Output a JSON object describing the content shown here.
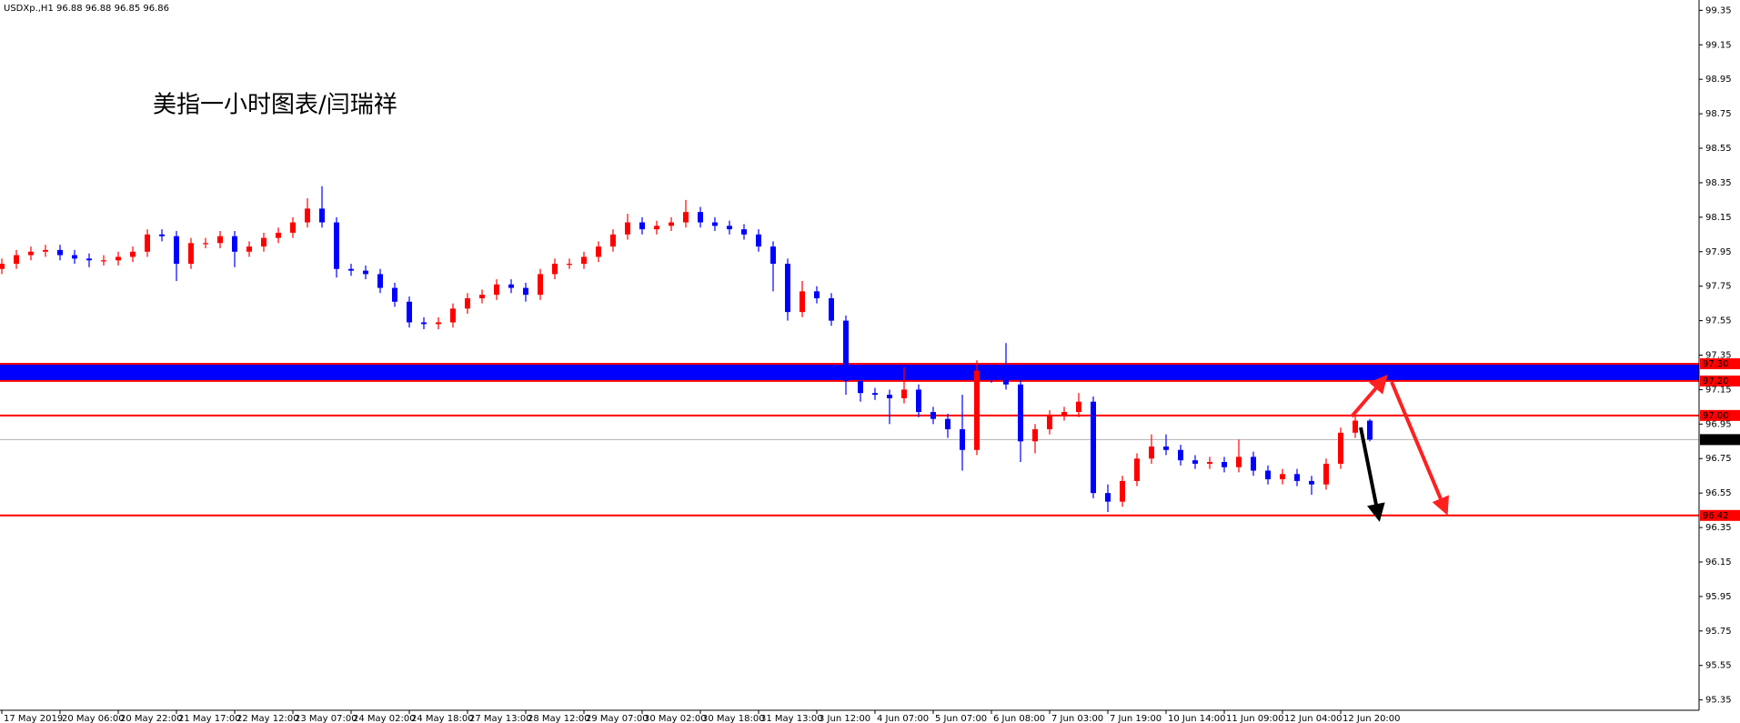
{
  "chart_data": {
    "type": "candlestick",
    "title": "USDXp.,H1 96.88 96.88 96.85 96.86",
    "annotation": "美指一小时图表/闫瑞祥",
    "up_color": "#ff0000",
    "down_color": "#0000ff",
    "ylim": [
      99.41,
      95.29
    ],
    "yticks": [
      99.35,
      99.15,
      98.95,
      98.75,
      98.55,
      98.35,
      98.15,
      97.95,
      97.75,
      97.55,
      97.35,
      97.15,
      96.95,
      96.75,
      96.55,
      96.35,
      96.15,
      95.95,
      95.75,
      95.55,
      95.35
    ],
    "xlim": [
      0,
      116.5
    ],
    "xticks": [
      {
        "value": 0,
        "label": "17 May 2019"
      },
      {
        "value": 4,
        "label": "20 May 06:00"
      },
      {
        "value": 8,
        "label": "20 May 22:00"
      },
      {
        "value": 12,
        "label": "21 May 17:00"
      },
      {
        "value": 16,
        "label": "22 May 12:00"
      },
      {
        "value": 20,
        "label": "23 May 07:00"
      },
      {
        "value": 24,
        "label": "24 May 02:00"
      },
      {
        "value": 28,
        "label": "24 May 18:00"
      },
      {
        "value": 32,
        "label": "27 May 13:00"
      },
      {
        "value": 36,
        "label": "28 May 12:00"
      },
      {
        "value": 40,
        "label": "29 May 07:00"
      },
      {
        "value": 44,
        "label": "30 May 02:00"
      },
      {
        "value": 48,
        "label": "30 May 18:00"
      },
      {
        "value": 52,
        "label": "31 May 13:00"
      },
      {
        "value": 56,
        "label": "3 Jun 12:00"
      },
      {
        "value": 60,
        "label": "4 Jun 07:00"
      },
      {
        "value": 64,
        "label": "5 Jun 07:00"
      },
      {
        "value": 68,
        "label": "6 Jun 08:00"
      },
      {
        "value": 72,
        "label": "7 Jun 03:00"
      },
      {
        "value": 76,
        "label": "7 Jun 19:00"
      },
      {
        "value": 80,
        "label": "10 Jun 14:00"
      },
      {
        "value": 84,
        "label": "11 Jun 09:00"
      },
      {
        "value": 88,
        "label": "12 Jun 04:00"
      },
      {
        "value": 92,
        "label": "12 Jun 20:00"
      }
    ],
    "zone": [
      97.2,
      97.3
    ],
    "zone_color": "#0000ff",
    "level_color": "#ff0000",
    "levels": [
      {
        "value": 97.3,
        "label": "97.30"
      },
      {
        "value": 97.2,
        "label": "97.20"
      },
      {
        "value": 97.0,
        "label": "97.00"
      },
      96.42
    ],
    "last_price": 96.86,
    "ohlc": [
      [
        97.85,
        97.91,
        97.82,
        97.88
      ],
      [
        97.88,
        97.96,
        97.85,
        97.93
      ],
      [
        97.93,
        97.98,
        97.9,
        97.95
      ],
      [
        97.95,
        97.99,
        97.92,
        97.96
      ],
      [
        97.96,
        97.99,
        97.9,
        97.93
      ],
      [
        97.93,
        97.96,
        97.88,
        97.91
      ],
      [
        97.91,
        97.94,
        97.86,
        97.9
      ],
      [
        97.9,
        97.93,
        97.87,
        97.9
      ],
      [
        97.9,
        97.95,
        97.87,
        97.92
      ],
      [
        97.92,
        97.98,
        97.89,
        97.95
      ],
      [
        97.95,
        98.08,
        97.92,
        98.05
      ],
      [
        98.05,
        98.08,
        98.01,
        98.04
      ],
      [
        98.04,
        98.07,
        97.78,
        97.88
      ],
      [
        97.88,
        98.03,
        97.85,
        98.0
      ],
      [
        98.0,
        98.03,
        97.97,
        98.0
      ],
      [
        98.0,
        98.07,
        97.97,
        98.04
      ],
      [
        98.04,
        98.07,
        97.86,
        97.95
      ],
      [
        97.95,
        98.01,
        97.92,
        97.98
      ],
      [
        97.98,
        98.06,
        97.95,
        98.03
      ],
      [
        98.03,
        98.09,
        98.0,
        98.06
      ],
      [
        98.06,
        98.15,
        98.03,
        98.12
      ],
      [
        98.12,
        98.26,
        98.09,
        98.2
      ],
      [
        98.2,
        98.33,
        98.09,
        98.12
      ],
      [
        98.12,
        98.15,
        97.8,
        97.85
      ],
      [
        97.85,
        97.88,
        97.81,
        97.84
      ],
      [
        97.84,
        97.87,
        97.79,
        97.82
      ],
      [
        97.82,
        97.85,
        97.71,
        97.74
      ],
      [
        97.74,
        97.77,
        97.63,
        97.66
      ],
      [
        97.66,
        97.69,
        97.51,
        97.54
      ],
      [
        97.54,
        97.57,
        97.5,
        97.53
      ],
      [
        97.53,
        97.57,
        97.5,
        97.54
      ],
      [
        97.54,
        97.65,
        97.51,
        97.62
      ],
      [
        97.62,
        97.71,
        97.59,
        97.68
      ],
      [
        97.68,
        97.73,
        97.65,
        97.7
      ],
      [
        97.7,
        97.79,
        97.67,
        97.76
      ],
      [
        97.76,
        97.79,
        97.71,
        97.74
      ],
      [
        97.74,
        97.77,
        97.66,
        97.7
      ],
      [
        97.7,
        97.85,
        97.67,
        97.82
      ],
      [
        97.82,
        97.91,
        97.79,
        97.88
      ],
      [
        97.88,
        97.91,
        97.85,
        97.88
      ],
      [
        97.88,
        97.95,
        97.85,
        97.92
      ],
      [
        97.92,
        98.01,
        97.89,
        97.98
      ],
      [
        97.98,
        98.08,
        97.95,
        98.05
      ],
      [
        98.05,
        98.17,
        98.02,
        98.12
      ],
      [
        98.12,
        98.15,
        98.05,
        98.08
      ],
      [
        98.08,
        98.13,
        98.05,
        98.1
      ],
      [
        98.1,
        98.15,
        98.07,
        98.12
      ],
      [
        98.12,
        98.25,
        98.09,
        98.18
      ],
      [
        98.18,
        98.21,
        98.09,
        98.12
      ],
      [
        98.12,
        98.15,
        98.07,
        98.1
      ],
      [
        98.1,
        98.13,
        98.05,
        98.08
      ],
      [
        98.08,
        98.11,
        98.02,
        98.05
      ],
      [
        98.05,
        98.08,
        97.95,
        97.98
      ],
      [
        97.98,
        98.01,
        97.72,
        97.88
      ],
      [
        97.88,
        97.91,
        97.55,
        97.6
      ],
      [
        97.6,
        97.78,
        97.57,
        97.72
      ],
      [
        97.72,
        97.75,
        97.65,
        97.68
      ],
      [
        97.68,
        97.71,
        97.52,
        97.55
      ],
      [
        97.55,
        97.58,
        97.12,
        97.2
      ],
      [
        97.2,
        97.23,
        97.08,
        97.13
      ],
      [
        97.13,
        97.16,
        97.09,
        97.12
      ],
      [
        97.12,
        97.15,
        96.95,
        97.1
      ],
      [
        97.1,
        97.28,
        97.07,
        97.15
      ],
      [
        97.15,
        97.18,
        96.99,
        97.02
      ],
      [
        97.02,
        97.05,
        96.95,
        96.98
      ],
      [
        96.98,
        97.01,
        96.87,
        96.92
      ],
      [
        96.92,
        97.12,
        96.68,
        96.8
      ],
      [
        96.8,
        97.32,
        96.77,
        97.26
      ],
      [
        97.26,
        97.29,
        97.19,
        97.22
      ],
      [
        97.22,
        97.42,
        97.15,
        97.18
      ],
      [
        97.18,
        97.21,
        96.73,
        96.85
      ],
      [
        96.85,
        96.95,
        96.78,
        96.92
      ],
      [
        96.92,
        97.03,
        96.89,
        97.0
      ],
      [
        97.0,
        97.05,
        96.97,
        97.02
      ],
      [
        97.02,
        97.13,
        96.99,
        97.08
      ],
      [
        97.08,
        97.11,
        96.52,
        96.55
      ],
      [
        96.55,
        96.6,
        96.44,
        96.5
      ],
      [
        96.5,
        96.65,
        96.47,
        96.62
      ],
      [
        96.62,
        96.78,
        96.59,
        96.75
      ],
      [
        96.75,
        96.89,
        96.72,
        96.82
      ],
      [
        96.82,
        96.89,
        96.77,
        96.8
      ],
      [
        96.8,
        96.83,
        96.71,
        96.74
      ],
      [
        96.74,
        96.77,
        96.69,
        96.72
      ],
      [
        96.72,
        96.76,
        96.69,
        96.73
      ],
      [
        96.73,
        96.76,
        96.67,
        96.7
      ],
      [
        96.7,
        96.86,
        96.67,
        96.76
      ],
      [
        96.76,
        96.79,
        96.65,
        96.68
      ],
      [
        96.68,
        96.71,
        96.6,
        96.63
      ],
      [
        96.63,
        96.69,
        96.6,
        96.66
      ],
      [
        96.66,
        96.69,
        96.59,
        96.62
      ],
      [
        96.62,
        96.65,
        96.54,
        96.6
      ],
      [
        96.6,
        96.75,
        96.57,
        96.72
      ],
      [
        96.72,
        96.93,
        96.69,
        96.9
      ],
      [
        96.9,
        97.0,
        96.87,
        96.97
      ],
      [
        96.97,
        96.98,
        96.85,
        96.86
      ]
    ]
  }
}
